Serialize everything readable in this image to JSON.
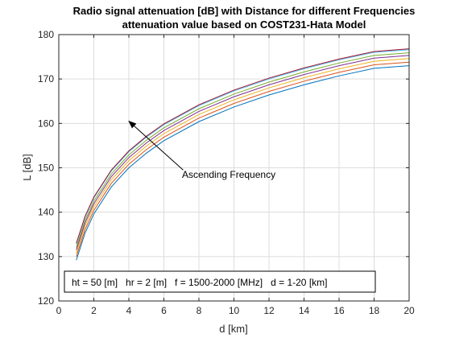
{
  "chart_data": {
    "type": "line",
    "title": [
      "Radio signal attenuation [dB] with Distance for different Frequencies",
      "attenuation value based on COST231-Hata Model"
    ],
    "xlabel": "d [km]",
    "ylabel": "L [dB]",
    "xlim": [
      0,
      20
    ],
    "ylim": [
      120,
      180
    ],
    "xticks": [
      0,
      2,
      4,
      6,
      8,
      10,
      12,
      14,
      16,
      18,
      20
    ],
    "yticks": [
      120,
      130,
      140,
      150,
      160,
      170,
      180
    ],
    "grid": true,
    "x": [
      1,
      1.5,
      2,
      3,
      4,
      5,
      6,
      8,
      10,
      12,
      14,
      16,
      18,
      20
    ],
    "series": [
      {
        "color": "#0072bd",
        "values": [
          129.2,
          135.3,
          139.6,
          145.7,
          150.0,
          153.3,
          156.1,
          160.4,
          163.7,
          166.4,
          168.7,
          170.7,
          172.4,
          173.0
        ]
      },
      {
        "color": "#d95319",
        "values": [
          130.0,
          136.1,
          140.4,
          146.5,
          150.8,
          154.1,
          156.9,
          161.2,
          164.5,
          167.2,
          169.5,
          171.5,
          173.2,
          173.8
        ]
      },
      {
        "color": "#edb120",
        "values": [
          130.8,
          136.9,
          141.2,
          147.3,
          151.6,
          154.9,
          157.7,
          162.0,
          165.3,
          168.0,
          170.3,
          172.3,
          174.0,
          174.6
        ]
      },
      {
        "color": "#7e2f8e",
        "values": [
          131.5,
          137.6,
          141.9,
          148.0,
          152.3,
          155.6,
          158.4,
          162.7,
          166.0,
          168.7,
          171.0,
          173.0,
          174.7,
          175.3
        ]
      },
      {
        "color": "#77ac30",
        "values": [
          132.1,
          138.2,
          142.5,
          148.6,
          152.9,
          156.2,
          159.0,
          163.3,
          166.6,
          169.3,
          171.6,
          173.6,
          175.3,
          175.9
        ]
      },
      {
        "color": "#4dbeee",
        "values": [
          132.8,
          138.9,
          143.2,
          149.3,
          153.6,
          156.9,
          159.7,
          164.0,
          167.3,
          170.0,
          172.3,
          174.3,
          176.0,
          176.6
        ]
      },
      {
        "color": "#a2142f",
        "values": [
          133.0,
          139.1,
          143.4,
          149.5,
          153.8,
          157.1,
          159.9,
          164.2,
          167.5,
          170.2,
          172.5,
          174.5,
          176.2,
          176.8
        ]
      }
    ],
    "annotation": {
      "text": "Ascending Frequency",
      "arrow_from": [
        7.1,
        149.5
      ],
      "arrow_to": [
        4.0,
        160.5
      ]
    },
    "info_box": "ht = 50 [m]   hr = 2 [m]   f = 1500-2000 [MHz]   d = 1-20 [km]"
  }
}
